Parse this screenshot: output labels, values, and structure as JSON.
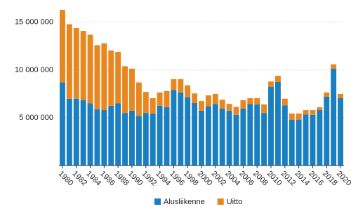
{
  "chart_data": {
    "type": "stacked-bar",
    "categories": [
      "1980",
      null,
      "1982",
      null,
      "1984",
      null,
      "1986",
      null,
      "1988",
      null,
      "1990",
      null,
      "1992",
      null,
      "1994",
      null,
      "1996",
      null,
      "1998",
      null,
      "2000",
      null,
      "2002",
      null,
      "2004",
      null,
      "2006",
      null,
      "2008",
      null,
      "2010",
      null,
      "2012",
      null,
      "2014",
      null,
      "2016",
      null,
      "2018",
      null,
      "2020"
    ],
    "series": [
      {
        "name": "Alusliikenne",
        "color": "#1a7fc1",
        "values": [
          8700000,
          7000000,
          7000000,
          6850000,
          6500000,
          5900000,
          5800000,
          6250000,
          6500000,
          5500000,
          5750000,
          5200000,
          5500000,
          5450000,
          6250000,
          6100000,
          7900000,
          7650000,
          7150000,
          6550000,
          5750000,
          6200000,
          6450000,
          5950000,
          5750000,
          5300000,
          5950000,
          6450000,
          6400000,
          5500000,
          8250000,
          8750000,
          6300000,
          4800000,
          4800000,
          5350000,
          5300000,
          5800000,
          7200000,
          10150000,
          7050000
        ]
      },
      {
        "name": "Uitto",
        "color": "#e8861f",
        "values": [
          7600000,
          7800000,
          7400000,
          7250000,
          7200000,
          6700000,
          7000000,
          5800000,
          5400000,
          4900000,
          4400000,
          3500000,
          2200000,
          1600000,
          1400000,
          1700000,
          1150000,
          1400000,
          1250000,
          1000000,
          1000000,
          1150000,
          1050000,
          950000,
          700000,
          850000,
          900000,
          600000,
          650000,
          900000,
          550000,
          650000,
          700000,
          650000,
          650000,
          450000,
          500000,
          300000,
          450000,
          450000,
          450000
        ]
      }
    ],
    "ylim": [
      0,
      16600000
    ],
    "yticks": [
      {
        "value": 5000000,
        "label": "5 000 000"
      },
      {
        "value": 10000000,
        "label": "10 000 000"
      },
      {
        "value": 15000000,
        "label": "15 000 000"
      }
    ],
    "grid": true
  }
}
